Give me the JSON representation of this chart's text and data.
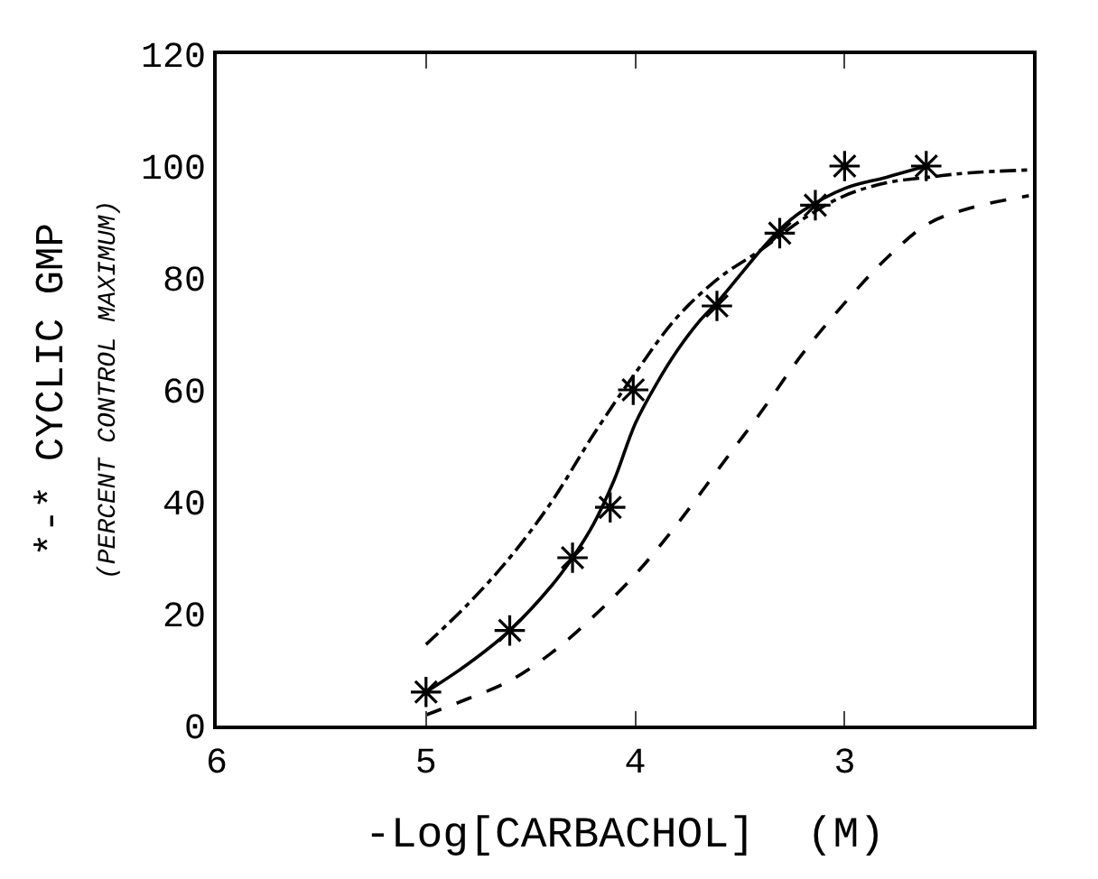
{
  "chart_data": {
    "type": "scatter",
    "xlabel": "-Log[CARBACHOL]  (M)",
    "ylabel": "*-* CYCLIC GMP\n(PERCENT CONTROL MAXIMUM)",
    "xlim": [
      6,
      2.1
    ],
    "xticks": [
      6,
      5,
      4,
      3
    ],
    "ylim": [
      0,
      120
    ],
    "yticks": [
      0,
      20,
      40,
      60,
      80,
      100,
      120
    ],
    "series": [
      {
        "marker": "cross",
        "color": "#000000",
        "x": [
          5.0,
          4.6,
          4.3,
          4.12,
          4.01,
          3.61,
          3.31,
          3.14,
          3.0,
          2.61
        ],
        "values": [
          6,
          17,
          30,
          39,
          60,
          75,
          88,
          93,
          100,
          100
        ]
      },
      {
        "type": "line",
        "line_style": "solid",
        "color": "#000000",
        "x": [
          5.0,
          4.8,
          4.6,
          4.4,
          4.3,
          4.2,
          4.1,
          4.0,
          3.9,
          3.8,
          3.7,
          3.6,
          3.5,
          3.4,
          3.3,
          3.2,
          3.0,
          2.8,
          2.61
        ],
        "values": [
          6,
          11,
          17,
          25,
          30,
          36,
          44,
          54,
          61,
          67,
          72,
          76,
          80.5,
          85,
          89,
          92,
          96,
          98,
          100
        ]
      },
      {
        "type": "line",
        "line_style": "dashdot",
        "color": "#000000",
        "x": [
          5.0,
          4.8,
          4.6,
          4.4,
          4.2,
          4.0,
          3.8,
          3.6,
          3.4,
          3.2,
          3.0,
          2.8,
          2.6,
          2.4,
          2.12
        ],
        "values": [
          14.5,
          21.7,
          30,
          40,
          52,
          63,
          73,
          80,
          85,
          90.5,
          94.7,
          97,
          98,
          98.8,
          99.3
        ]
      },
      {
        "type": "line",
        "line_style": "dashed",
        "color": "#000000",
        "x": [
          5.0,
          4.8,
          4.6,
          4.4,
          4.2,
          4.0,
          3.8,
          3.6,
          3.4,
          3.2,
          3.0,
          2.8,
          2.6,
          2.4,
          2.12
        ],
        "values": [
          1.9,
          4.8,
          8,
          13,
          19.5,
          27,
          36,
          46,
          56,
          66.5,
          75.5,
          83.5,
          89.7,
          92.5,
          94.7
        ]
      }
    ]
  }
}
